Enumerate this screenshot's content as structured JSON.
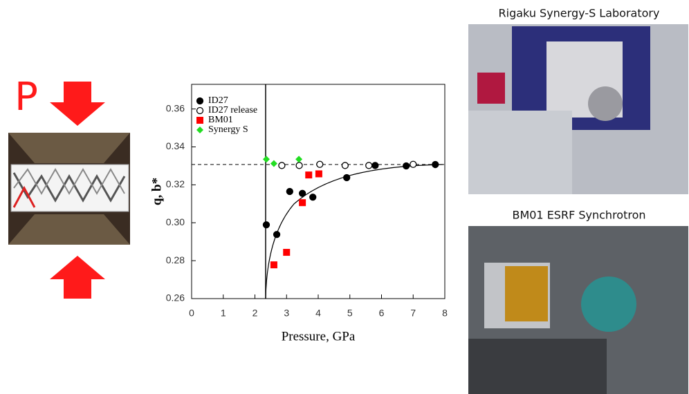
{
  "chart_data": {
    "type": "scatter",
    "x_label": "Pressure, GPa",
    "y_label": "q, b*",
    "xlim": [
      0,
      8
    ],
    "ylim": [
      0.26,
      0.373
    ],
    "xticks": [
      0,
      1,
      2,
      3,
      4,
      5,
      6,
      7,
      8
    ],
    "yticks": [
      0.26,
      0.28,
      {
        "value": 0.3,
        "label": "0.30"
      },
      0.32,
      0.34,
      0.36
    ],
    "legend": "top-left",
    "series": [
      {
        "name": "ID27",
        "color": "#000000",
        "marker": "circle-filled",
        "x": [
          2.36,
          2.69,
          3.1,
          3.5,
          3.83,
          4.9,
          5.8,
          6.78,
          7.7
        ],
        "values": [
          0.2989,
          0.2938,
          0.3165,
          0.3155,
          0.3135,
          0.3238,
          0.3302,
          0.33,
          0.3307
        ]
      },
      {
        "name": "ID27 release",
        "color": "#000000",
        "marker": "circle-open",
        "x": [
          2.85,
          3.4,
          4.05,
          4.85,
          5.6,
          7.0
        ],
        "values": [
          0.3302,
          0.3302,
          0.3308,
          0.3302,
          0.3302,
          0.3308
        ]
      },
      {
        "name": "BM01",
        "color": "#ff0000",
        "marker": "square",
        "x": [
          2.6,
          3.0,
          3.5,
          3.7,
          4.02
        ],
        "values": [
          0.2778,
          0.2844,
          0.3106,
          0.3252,
          0.3258
        ]
      },
      {
        "name": "Synergy S",
        "color": "#22dd22",
        "marker": "diamond",
        "x": [
          2.36,
          2.6,
          3.39
        ],
        "values": [
          0.3335,
          0.3312,
          0.3335
        ]
      }
    ]
  },
  "panels": {
    "pressure_symbol": "P",
    "photo_titles": [
      "Rigaku Synergy-S Laboratory",
      "BM01 ESRF Synchrotron"
    ]
  }
}
